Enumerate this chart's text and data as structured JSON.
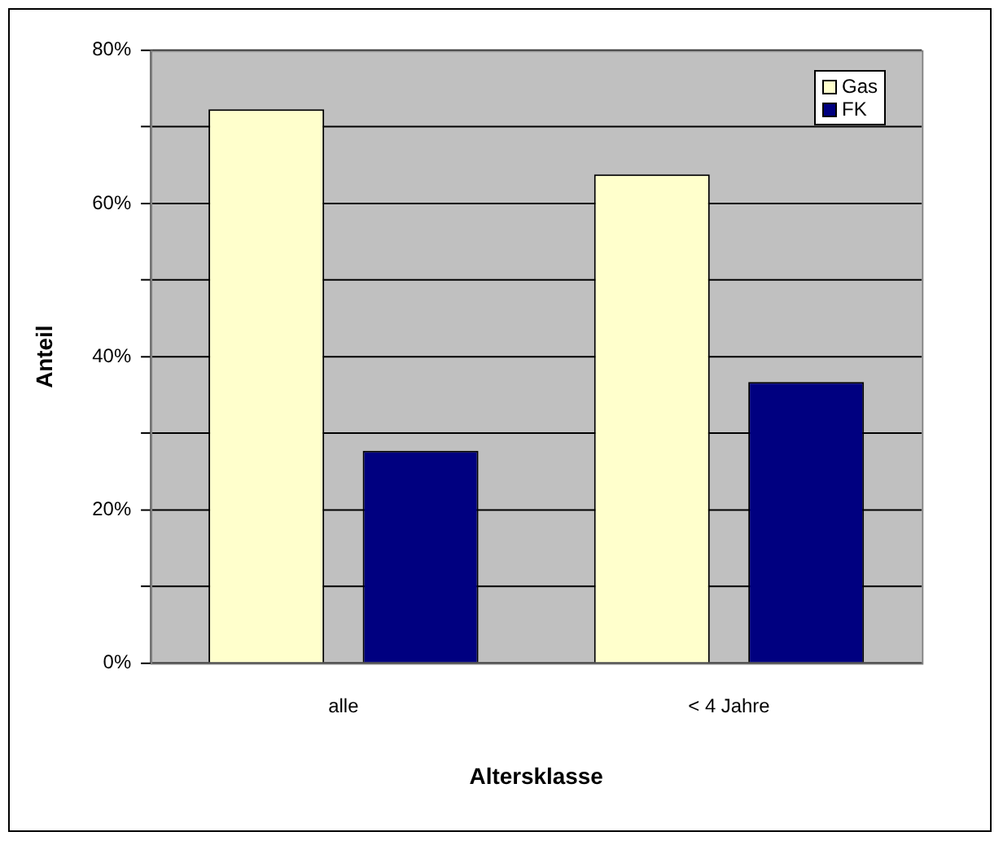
{
  "chart_data": {
    "type": "bar",
    "xlabel": "Altersklasse",
    "ylabel": "Anteil",
    "categories": [
      "alle",
      "< 4 Jahre"
    ],
    "series": [
      {
        "name": "Gas",
        "color": "#ffffcc",
        "values": [
          72.3,
          63.8
        ]
      },
      {
        "name": "FK",
        "color": "#000080",
        "values": [
          27.7,
          36.7
        ]
      }
    ],
    "ylim": [
      0,
      80
    ],
    "yticks": [
      {
        "value": 0,
        "label": "0%"
      },
      {
        "value": 10,
        "label": null
      },
      {
        "value": 20,
        "label": "20%"
      },
      {
        "value": 30,
        "label": null
      },
      {
        "value": 40,
        "label": "40%"
      },
      {
        "value": 50,
        "label": null
      },
      {
        "value": 60,
        "label": "60%"
      },
      {
        "value": 70,
        "label": null
      },
      {
        "value": 80,
        "label": "80%"
      }
    ],
    "grid": "y",
    "legend": "top right"
  }
}
